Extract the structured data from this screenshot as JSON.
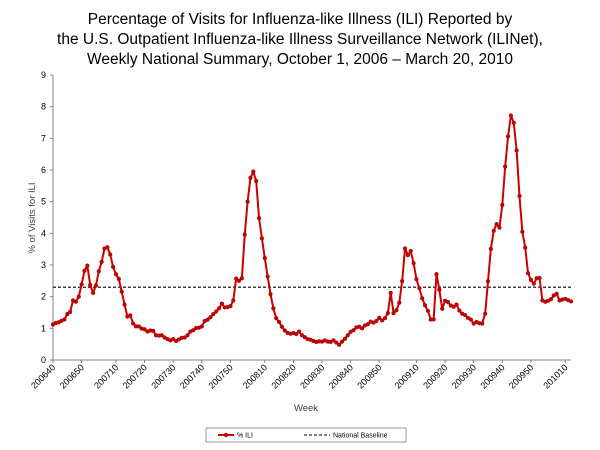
{
  "chart_data": {
    "type": "line",
    "title_lines": [
      "Percentage of Visits for Influenza-like Illness (ILI) Reported by",
      "the U.S. Outpatient Influenza-like Illness Surveillance Network (ILINet),",
      "Weekly National Summary, October 1, 2006 – March 20, 2010"
    ],
    "xlabel": "Week",
    "ylabel": "% of Visits for ILI",
    "ylim": [
      0,
      9
    ],
    "yticks": [
      0,
      1,
      2,
      3,
      4,
      5,
      6,
      7,
      8,
      9
    ],
    "xticks": [
      "200640",
      "200650",
      "200710",
      "200720",
      "200730",
      "200740",
      "200750",
      "200810",
      "200820",
      "200830",
      "200840",
      "200850",
      "200910",
      "200920",
      "200930",
      "200940",
      "200950",
      "201010"
    ],
    "grid": false,
    "legend_position": "bottom-center",
    "series": [
      {
        "name": "% ILI",
        "color": "#cc0000",
        "marker": "circle",
        "x_start": "200640",
        "x_end": "201010",
        "values": [
          1.12,
          1.17,
          1.19,
          1.24,
          1.28,
          1.45,
          1.52,
          1.88,
          1.84,
          2.0,
          2.39,
          2.82,
          2.98,
          2.37,
          2.12,
          2.35,
          2.8,
          3.1,
          3.52,
          3.56,
          3.33,
          2.94,
          2.71,
          2.56,
          2.16,
          1.75,
          1.37,
          1.41,
          1.15,
          1.06,
          1.06,
          0.99,
          0.97,
          0.9,
          0.93,
          0.92,
          0.78,
          0.77,
          0.78,
          0.71,
          0.66,
          0.62,
          0.66,
          0.6,
          0.65,
          0.7,
          0.71,
          0.78,
          0.9,
          0.94,
          1.01,
          1.02,
          1.06,
          1.23,
          1.27,
          1.35,
          1.45,
          1.53,
          1.63,
          1.78,
          1.66,
          1.67,
          1.7,
          1.88,
          2.57,
          2.5,
          2.58,
          3.96,
          5.0,
          5.75,
          5.95,
          5.65,
          4.48,
          3.84,
          3.22,
          2.64,
          2.08,
          1.63,
          1.32,
          1.2,
          1.05,
          0.93,
          0.85,
          0.83,
          0.85,
          0.82,
          0.9,
          0.78,
          0.72,
          0.66,
          0.64,
          0.6,
          0.57,
          0.59,
          0.58,
          0.62,
          0.58,
          0.57,
          0.62,
          0.55,
          0.48,
          0.58,
          0.67,
          0.78,
          0.89,
          0.94,
          1.03,
          1.05,
          1.0,
          1.09,
          1.13,
          1.21,
          1.18,
          1.23,
          1.33,
          1.25,
          1.32,
          1.48,
          2.12,
          1.48,
          1.57,
          1.81,
          2.49,
          3.52,
          3.31,
          3.44,
          3.06,
          2.55,
          2.27,
          1.95,
          1.73,
          1.55,
          1.28,
          1.28,
          2.71,
          2.22,
          1.62,
          1.87,
          1.83,
          1.72,
          1.68,
          1.75,
          1.56,
          1.46,
          1.42,
          1.33,
          1.28,
          1.15,
          1.2,
          1.16,
          1.15,
          1.46,
          2.49,
          3.51,
          4.08,
          4.29,
          4.18,
          4.9,
          6.11,
          7.06,
          7.72,
          7.49,
          6.62,
          5.18,
          4.05,
          3.55,
          2.74,
          2.53,
          2.41,
          2.58,
          2.59,
          1.88,
          1.84,
          1.87,
          1.92,
          2.04,
          2.09,
          1.88,
          1.91,
          1.93,
          1.89,
          1.85
        ]
      },
      {
        "name": "National Baseline",
        "color": "#000000",
        "style": "dashed",
        "value": 2.3
      }
    ]
  }
}
